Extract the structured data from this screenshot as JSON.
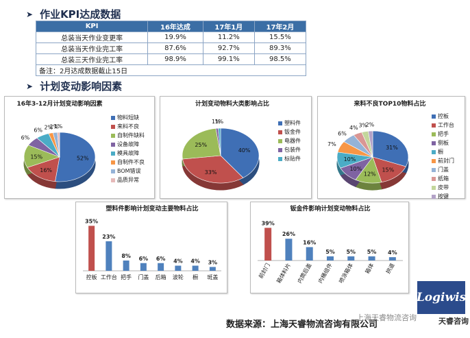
{
  "section1": {
    "title": "作业KPI达成数据",
    "arrow": "➤"
  },
  "section2": {
    "title": "计划变动影响因素",
    "arrow": "➤"
  },
  "kpi_table": {
    "headers": [
      "KPI",
      "16年达成",
      "17年1月",
      "17年2月"
    ],
    "rows": [
      [
        "总装当天作业变更率",
        "19.9%",
        "11.2%",
        "15.5%"
      ],
      [
        "总装当天作业完工率",
        "87.6%",
        "92.7%",
        "89.3%"
      ],
      [
        "总装三天作业完工率",
        "98.9%",
        "99.1%",
        "98.5%"
      ]
    ],
    "note": "备注：2月达成数据截止15日"
  },
  "chart_data": [
    {
      "type": "pie",
      "title": "16年3-12月计划变动影响因素",
      "labels": [
        "物料短缺",
        "来料不良",
        "自制件缺料",
        "设备故障",
        "模具故障",
        "自制件不良",
        "BOM错误",
        "品质异常"
      ],
      "values": [
        52,
        16,
        15,
        6,
        6,
        2,
        2,
        1
      ],
      "value_labels": [
        "52%",
        "16%",
        "15%",
        "6%",
        "6%",
        "2%",
        "2%",
        "1%"
      ],
      "colors": [
        "#3f6fb5",
        "#c0504d",
        "#9bbb59",
        "#7f63a2",
        "#4bacc6",
        "#f79646",
        "#95b3d7",
        "#e6b9b8"
      ]
    },
    {
      "type": "pie",
      "title": "计划变动物料大类影响占比",
      "labels": [
        "塑料件",
        "钣金件",
        "电器件",
        "包装件",
        "标贴件"
      ],
      "values": [
        40,
        33,
        25,
        1,
        1
      ],
      "value_labels": [
        "40%",
        "33%",
        "25%",
        "1%",
        "1%"
      ],
      "colors": [
        "#3f6fb5",
        "#c0504d",
        "#9bbb59",
        "#7f63a2",
        "#4bacc6"
      ]
    },
    {
      "type": "pie",
      "title": "来料不良TOP10物料占比",
      "labels": [
        "控板",
        "工作台",
        "把手",
        "侧板",
        "橱",
        "前封门",
        "门盖",
        "纸箱",
        "皮带",
        "按键"
      ],
      "values": [
        31,
        15,
        12,
        10,
        10,
        7,
        6,
        4,
        3,
        2
      ],
      "value_labels": [
        "31%",
        "15%",
        "12%",
        "10%",
        "10%",
        "7%",
        "6%",
        "4%",
        "3%",
        "2%"
      ],
      "colors": [
        "#3f6fb5",
        "#c0504d",
        "#9bbb59",
        "#7f63a2",
        "#4bacc6",
        "#f79646",
        "#95b3d7",
        "#d99694",
        "#c3d69b",
        "#b3a2c7"
      ]
    },
    {
      "type": "bar",
      "title": "塑料件影响计划变动主要物料占比",
      "categories": [
        "控板",
        "工作台",
        "把手",
        "门盖",
        "后箱",
        "波轮",
        "橱",
        "斑盖"
      ],
      "values": [
        35,
        23,
        8,
        6,
        6,
        4,
        4,
        3
      ],
      "value_labels": [
        "35%",
        "23%",
        "8%",
        "6%",
        "6%",
        "4%",
        "4%",
        "3%"
      ],
      "colors": [
        "#c0504d",
        "#4f81bd",
        "#4f81bd",
        "#4f81bd",
        "#4f81bd",
        "#4f81bd",
        "#4f81bd",
        "#4f81bd"
      ],
      "ylim": [
        0,
        40
      ]
    },
    {
      "type": "bar",
      "title": "钣金件影响计划变动物料占比",
      "categories": [
        "前封门",
        "箱体料片",
        "内筒后盖",
        "内桶组件",
        "喷涂箱体",
        "箱体",
        "拱道"
      ],
      "values": [
        39,
        26,
        16,
        5,
        5,
        5,
        4
      ],
      "value_labels": [
        "39%",
        "26%",
        "16%",
        "5%",
        "5%",
        "5%",
        "4%"
      ],
      "colors": [
        "#c0504d",
        "#4f81bd",
        "#4f81bd",
        "#4f81bd",
        "#4f81bd",
        "#4f81bd",
        "#4f81bd"
      ],
      "ylim": [
        0,
        45
      ]
    }
  ],
  "footer": {
    "source": "数据来源：上海天睿物流咨询有限公司",
    "watermark": "上海天睿物流咨询",
    "logo": "Logiwis",
    "logo_sub": "天睿咨询"
  }
}
